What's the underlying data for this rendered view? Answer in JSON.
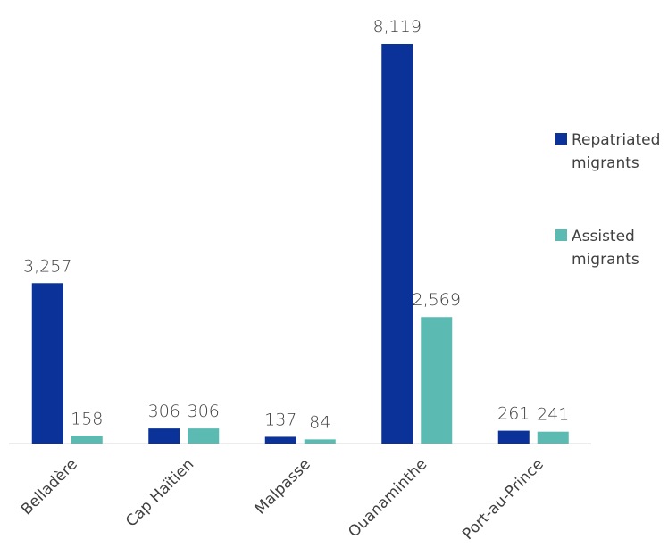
{
  "chart_data": {
    "type": "bar",
    "categories": [
      "Belladère",
      "Cap Haïtien",
      "Malpasse",
      "Ouanaminthe",
      "Port-au-Prince"
    ],
    "series": [
      {
        "name": "Repatriated migrants",
        "values": [
          3257,
          306,
          137,
          8119,
          261
        ],
        "labels": [
          "3,257",
          "306",
          "137",
          "8,119",
          "261"
        ],
        "color": "#0A3299"
      },
      {
        "name": "Assisted migrants",
        "values": [
          158,
          306,
          84,
          2569,
          241
        ],
        "labels": [
          "158",
          "306",
          "84",
          "2,569",
          "241"
        ],
        "color": "#5BBAB1"
      }
    ],
    "legend": {
      "position": "right",
      "entries": [
        {
          "lines": [
            "Repatriated",
            "migrants"
          ],
          "color": "#0A3299"
        },
        {
          "lines": [
            "Assisted",
            "migrants"
          ],
          "color": "#5BBAB1"
        }
      ]
    },
    "ylim": [
      0,
      8119
    ],
    "grid": false
  }
}
